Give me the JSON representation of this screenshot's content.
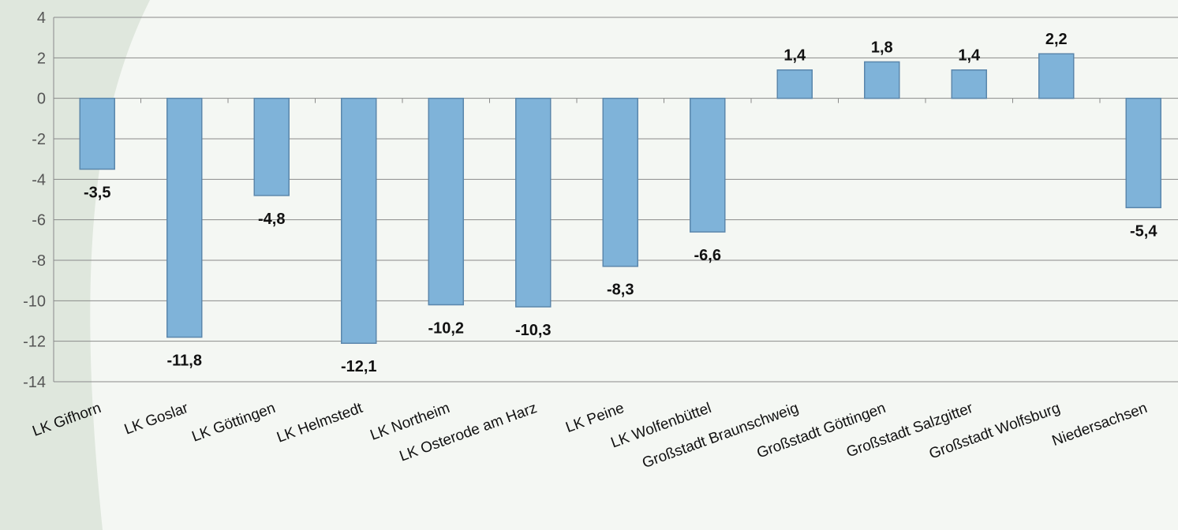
{
  "chart_data": {
    "type": "bar",
    "categories": [
      "LK Gifhorn",
      "LK Goslar",
      "LK Göttingen",
      "LK Helmstedt",
      "LK Northeim",
      "LK Osterode am Harz",
      "LK Peine",
      "LK Wolfenbüttel",
      "Großstadt Braunschweig",
      "Großstadt Göttingen",
      "Großstadt Salzgitter",
      "Großstadt Wolfsburg",
      "Niedersachsen"
    ],
    "values": [
      -3.5,
      -11.8,
      -4.8,
      -12.1,
      -10.2,
      -10.3,
      -8.3,
      -6.6,
      1.4,
      1.8,
      1.4,
      2.2,
      -5.4
    ],
    "data_labels": [
      "-3,5",
      "-11,8",
      "-4,8",
      "-12,1",
      "-10,2",
      "-10,3",
      "-8,3",
      "-6,6",
      "1,4",
      "1,8",
      "1,4",
      "2,2",
      "-5,4"
    ],
    "y_ticks": [
      4,
      2,
      0,
      -2,
      -4,
      -6,
      -8,
      -10,
      -12,
      -14
    ],
    "ylim": [
      -14,
      4
    ],
    "title": "",
    "xlabel": "",
    "ylabel": "",
    "grid": true,
    "colors": {
      "bar_fill": "#7fb3d9",
      "bar_stroke": "#5b87ac",
      "grid": "#8a8a8a",
      "background": "#f4f7f3",
      "swoosh": "#dfe7dd"
    }
  }
}
